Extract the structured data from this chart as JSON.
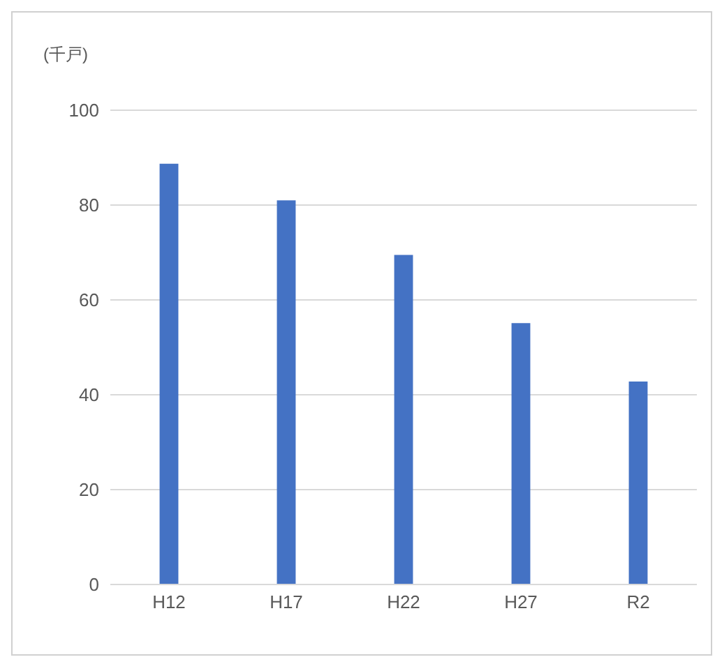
{
  "chart_data": {
    "type": "bar",
    "ylabel": "(千戸)",
    "categories": [
      "H12",
      "H17",
      "H22",
      "H27",
      "R2"
    ],
    "values": [
      88.7,
      81,
      69.5,
      55.1,
      42.8
    ],
    "color": "#4472c4",
    "ylim": [
      0,
      100
    ],
    "yticks": [
      0,
      20,
      40,
      60,
      80,
      100
    ],
    "grid": "y"
  }
}
